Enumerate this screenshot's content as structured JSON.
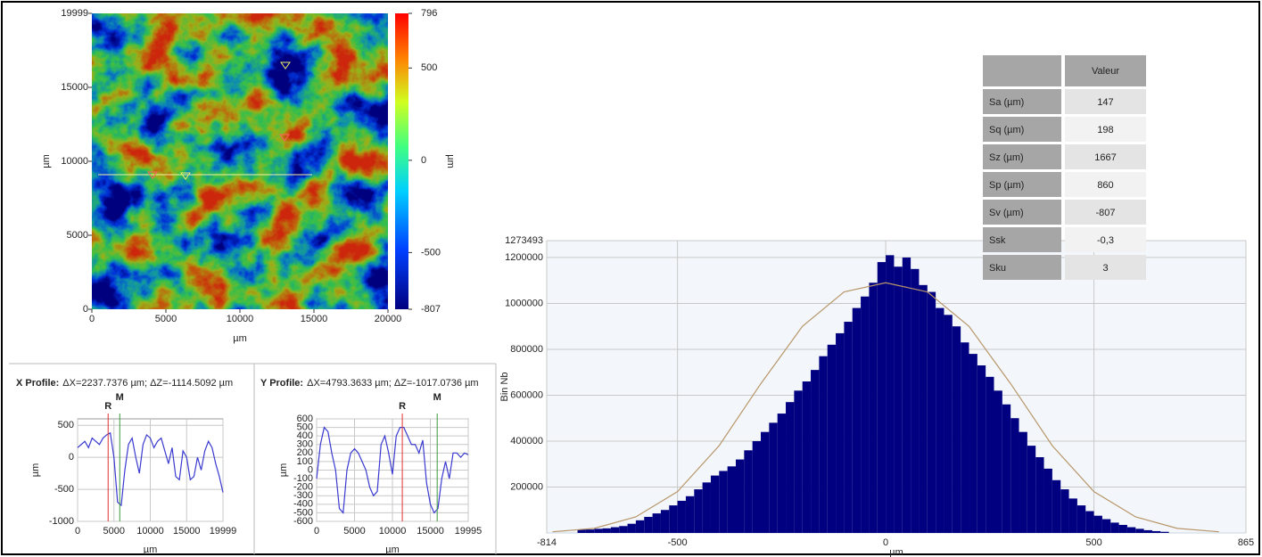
{
  "chart_data": [
    {
      "type": "heatmap",
      "x_label": "µm",
      "y_label": "µm",
      "xlim": [
        0,
        20000
      ],
      "ylim": [
        0,
        19999
      ],
      "xticks": [
        0,
        5000,
        10000,
        15000,
        20000
      ],
      "yticks": [
        0,
        5000,
        10000,
        15000,
        19999
      ],
      "colorbar": {
        "label": "µm",
        "lim": [
          -807,
          796
        ],
        "ticks": [
          -807,
          -500,
          0,
          500,
          796
        ]
      }
    },
    {
      "type": "line",
      "title": "X Profile:",
      "subtitle": "ΔX=2237.7376 µm; ΔZ=-1114.5092 µm",
      "x_label": "µm",
      "y_label": "µm",
      "grid": true,
      "xlim": [
        0,
        19999
      ],
      "ylim": [
        -1000,
        600
      ],
      "xticks": [
        0,
        5000,
        10000,
        15000,
        19999
      ],
      "yticks": [
        -1000,
        -500,
        0,
        500
      ],
      "x": [
        0,
        500,
        1000,
        1500,
        2000,
        2500,
        3000,
        3500,
        4000,
        4500,
        5000,
        5500,
        6000,
        6500,
        7000,
        7500,
        8000,
        8500,
        9000,
        9500,
        10000,
        10500,
        11000,
        11500,
        12000,
        12500,
        13000,
        13500,
        14000,
        14500,
        15000,
        15500,
        16000,
        16500,
        17000,
        17500,
        18000,
        18500,
        19000,
        19500,
        19999
      ],
      "series": [
        {
          "color": "#3a3ad0",
          "values": [
            150,
            200,
            250,
            150,
            300,
            250,
            200,
            300,
            350,
            380,
            0,
            -700,
            -750,
            -200,
            200,
            300,
            0,
            -250,
            200,
            350,
            300,
            150,
            250,
            300,
            100,
            -100,
            150,
            -300,
            -350,
            100,
            0,
            -350,
            -300,
            0,
            -200,
            100,
            250,
            150,
            -100,
            -300,
            -550
          ]
        }
      ],
      "markers": [
        {
          "label": "R",
          "x": 4200,
          "color": "#e03030"
        },
        {
          "label": "M",
          "x": 5800,
          "color": "#3a9a3a"
        }
      ]
    },
    {
      "type": "line",
      "title": "Y Profile:",
      "subtitle": "ΔX=4793.3633 µm; ΔZ=-1017.0736 µm",
      "x_label": "µm",
      "y_label": "µm",
      "grid": true,
      "xlim": [
        0,
        19995
      ],
      "ylim": [
        -600,
        600
      ],
      "xticks": [
        0,
        5000,
        10000,
        15000,
        19995
      ],
      "yticks": [
        -600,
        -500,
        -400,
        -300,
        -200,
        -100,
        0,
        100,
        200,
        300,
        400,
        500,
        600
      ],
      "x": [
        0,
        500,
        1000,
        1500,
        2000,
        2500,
        3000,
        3500,
        4000,
        4500,
        5000,
        5500,
        6000,
        6500,
        7000,
        7500,
        8000,
        8500,
        9000,
        9500,
        10000,
        10500,
        11000,
        11500,
        12000,
        12500,
        13000,
        13500,
        14000,
        14500,
        15000,
        15500,
        16000,
        16500,
        17000,
        17500,
        18000,
        18500,
        19000,
        19500,
        19995
      ],
      "series": [
        {
          "color": "#3a3ad0",
          "values": [
            -100,
            300,
            500,
            450,
            200,
            0,
            -450,
            -500,
            0,
            200,
            250,
            200,
            100,
            0,
            -200,
            -300,
            -250,
            300,
            400,
            200,
            -50,
            400,
            500,
            500,
            400,
            300,
            300,
            200,
            350,
            -150,
            -400,
            -500,
            -450,
            -100,
            100,
            -100,
            200,
            200,
            150,
            200,
            180
          ]
        }
      ],
      "markers": [
        {
          "label": "R",
          "x": 11300,
          "color": "#e03030"
        },
        {
          "label": "M",
          "x": 15900,
          "color": "#3a9a3a"
        }
      ]
    },
    {
      "type": "histogram",
      "x_label": "µm",
      "y_label": "Bin Nb",
      "grid": true,
      "color": "#000080",
      "xlim": [
        -814,
        865
      ],
      "ylim": [
        0,
        1273493
      ],
      "xticks": [
        -814,
        -500,
        0,
        500,
        865
      ],
      "yticks": [
        200000,
        400000,
        600000,
        800000,
        1000000,
        1200000,
        1273493
      ],
      "bins": [
        -740,
        -720,
        -700,
        -680,
        -660,
        -640,
        -620,
        -600,
        -580,
        -560,
        -540,
        -520,
        -500,
        -480,
        -460,
        -440,
        -420,
        -400,
        -380,
        -360,
        -340,
        -320,
        -300,
        -280,
        -260,
        -240,
        -220,
        -200,
        -180,
        -160,
        -140,
        -120,
        -100,
        -80,
        -60,
        -40,
        -20,
        0,
        20,
        40,
        60,
        80,
        100,
        120,
        140,
        160,
        180,
        200,
        220,
        240,
        260,
        280,
        300,
        320,
        340,
        360,
        380,
        400,
        420,
        440,
        460,
        480,
        500,
        520,
        540,
        560,
        580,
        600,
        620,
        640,
        660,
        680
      ],
      "values": [
        15000,
        15000,
        18000,
        20000,
        25000,
        30000,
        40000,
        55000,
        70000,
        85000,
        100000,
        120000,
        140000,
        160000,
        190000,
        220000,
        250000,
        270000,
        290000,
        320000,
        360000,
        400000,
        440000,
        480000,
        520000,
        570000,
        620000,
        660000,
        710000,
        770000,
        820000,
        870000,
        920000,
        980000,
        1030000,
        1090000,
        1180000,
        1210000,
        1160000,
        1200000,
        1150000,
        1080000,
        1050000,
        980000,
        950000,
        900000,
        830000,
        780000,
        730000,
        680000,
        620000,
        560000,
        500000,
        440000,
        380000,
        330000,
        280000,
        230000,
        190000,
        150000,
        120000,
        95000,
        75000,
        60000,
        45000,
        35000,
        25000,
        18000,
        12000,
        8000,
        5000
      ],
      "fit": {
        "color": "#b8966a",
        "x": [
          -800,
          -700,
          -600,
          -500,
          -400,
          -300,
          -200,
          -100,
          0,
          100,
          200,
          300,
          400,
          500,
          600,
          700,
          800
        ],
        "values": [
          5000,
          20000,
          70000,
          180000,
          380000,
          650000,
          900000,
          1050000,
          1090000,
          1050000,
          900000,
          650000,
          380000,
          180000,
          70000,
          20000,
          5000
        ]
      }
    }
  ],
  "table": {
    "header": "Valeur",
    "rows": [
      [
        "Sa (µm)",
        "147"
      ],
      [
        "Sq (µm)",
        "198"
      ],
      [
        "Sz (µm)",
        "1667"
      ],
      [
        "Sp (µm)",
        "860"
      ],
      [
        "Sv (µm)",
        "-807"
      ],
      [
        "Ssk",
        "-0,3"
      ],
      [
        "Sku",
        "3"
      ]
    ]
  }
}
